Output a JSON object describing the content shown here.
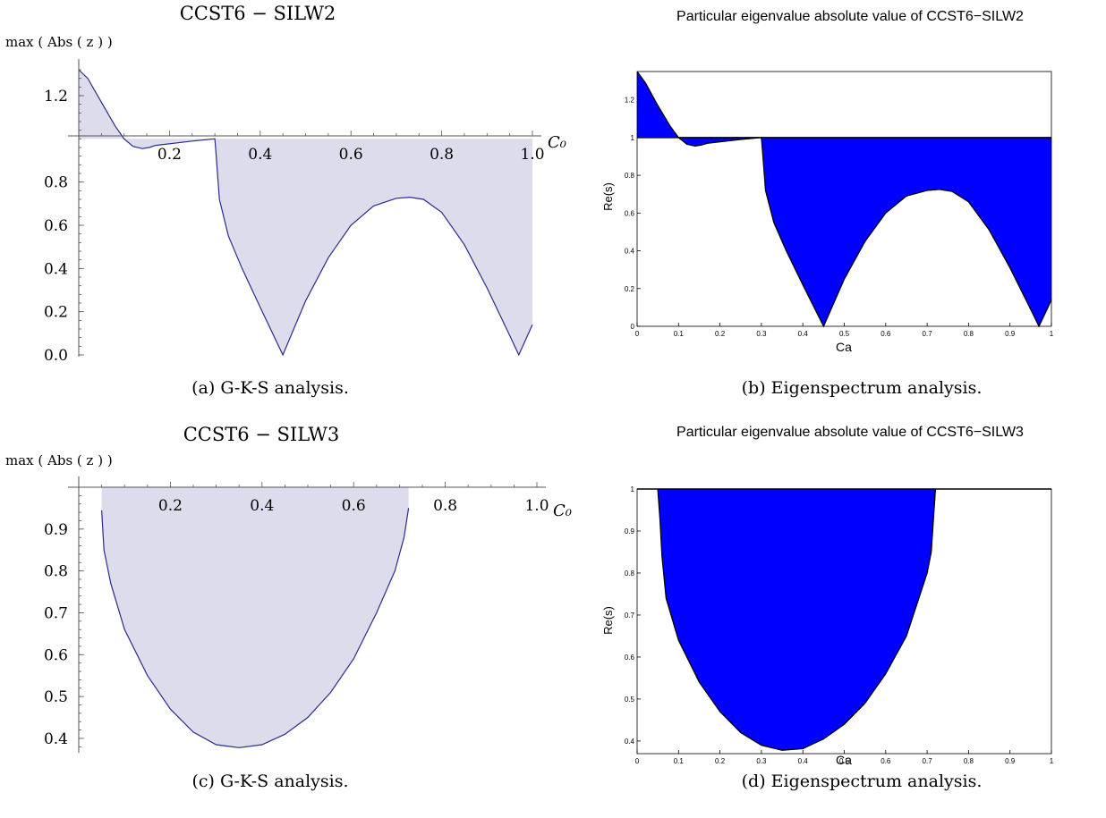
{
  "chart_data": [
    {
      "id": "a",
      "type": "area",
      "title": "CCST6 − SILW2",
      "ylabel": "max ( Abs ( z ) )",
      "xlabel": "C₀",
      "xlim": [
        0,
        1.0
      ],
      "ylim": [
        0,
        1.32
      ],
      "baseline": 1.0,
      "fill_color": "#dcdcec",
      "line_color": "#2b2b8c",
      "xticks": [
        0.2,
        0.4,
        0.6,
        0.8,
        1.0
      ],
      "xtick_labels": [
        "0.2",
        "0.4",
        "0.6",
        "0.8",
        "1.0"
      ],
      "yticks": [
        0.0,
        0.2,
        0.4,
        0.6,
        0.8,
        1.2
      ],
      "ytick_labels": [
        "0.0",
        "0.2",
        "0.4",
        "0.6",
        "0.8",
        "1.2"
      ],
      "x": [
        0.0,
        0.02,
        0.05,
        0.08,
        0.1,
        0.12,
        0.14,
        0.155,
        0.17,
        0.25,
        0.3,
        0.302,
        0.31,
        0.33,
        0.36,
        0.4,
        0.45,
        0.5,
        0.55,
        0.6,
        0.65,
        0.7,
        0.73,
        0.76,
        0.8,
        0.85,
        0.9,
        0.95,
        0.97,
        0.985,
        1.0
      ],
      "y": [
        1.32,
        1.28,
        1.17,
        1.06,
        1.0,
        0.965,
        0.955,
        0.96,
        0.97,
        0.99,
        1.0,
        0.95,
        0.72,
        0.55,
        0.4,
        0.22,
        0.0,
        0.25,
        0.45,
        0.6,
        0.69,
        0.725,
        0.73,
        0.72,
        0.66,
        0.51,
        0.31,
        0.09,
        0.0,
        0.07,
        0.14
      ],
      "caption": "(a) G-K-S analysis."
    },
    {
      "id": "b",
      "type": "area",
      "title": "Particular eigenvalue absolute value of CCST6−SILW2",
      "ylabel": "Re(s)",
      "xlabel": "Ca",
      "xlim": [
        0,
        1
      ],
      "ylim": [
        0,
        1.35
      ],
      "baseline": 1.0,
      "fill_color": "#0000ff",
      "line_color": "#000000",
      "xticks": [
        0,
        0.1,
        0.2,
        0.3,
        0.4,
        0.5,
        0.6,
        0.7,
        0.8,
        0.9,
        1
      ],
      "xtick_labels": [
        "0",
        "0.1",
        "0.2",
        "0.3",
        "0.4",
        "0.5",
        "0.6",
        "0.7",
        "0.8",
        "0.9",
        "1"
      ],
      "yticks": [
        0,
        0.2,
        0.4,
        0.6,
        0.8,
        1,
        1.2
      ],
      "ytick_labels": [
        "0",
        "0.2",
        "0.4",
        "0.6",
        "0.8",
        "1",
        "1.2"
      ],
      "x": [
        0.0,
        0.02,
        0.05,
        0.08,
        0.1,
        0.12,
        0.14,
        0.155,
        0.17,
        0.25,
        0.3,
        0.302,
        0.31,
        0.33,
        0.36,
        0.4,
        0.45,
        0.5,
        0.55,
        0.6,
        0.65,
        0.7,
        0.73,
        0.76,
        0.8,
        0.85,
        0.9,
        0.95,
        0.97,
        0.985,
        1.0
      ],
      "y": [
        1.35,
        1.29,
        1.17,
        1.06,
        1.0,
        0.965,
        0.955,
        0.96,
        0.97,
        0.99,
        1.0,
        0.95,
        0.72,
        0.55,
        0.4,
        0.22,
        0.0,
        0.25,
        0.45,
        0.6,
        0.69,
        0.72,
        0.725,
        0.715,
        0.66,
        0.51,
        0.31,
        0.09,
        0.0,
        0.07,
        0.14
      ],
      "caption": "(b) Eigenspectrum analysis."
    },
    {
      "id": "c",
      "type": "area",
      "title": "CCST6 − SILW3",
      "ylabel": "max ( Abs ( z ) )",
      "xlabel": "C₀",
      "xlim": [
        0,
        1.0
      ],
      "ylim": [
        0.37,
        1.0
      ],
      "baseline": 1.0,
      "fill_color": "#dcdcec",
      "line_color": "#2b2b8c",
      "xticks": [
        0.2,
        0.4,
        0.6,
        0.8,
        1.0
      ],
      "xtick_labels": [
        "0.2",
        "0.4",
        "0.6",
        "0.8",
        "1.0"
      ],
      "yticks": [
        0.4,
        0.5,
        0.6,
        0.7,
        0.8,
        0.9
      ],
      "ytick_labels": [
        "0.4",
        "0.5",
        "0.6",
        "0.7",
        "0.8",
        "0.9"
      ],
      "x": [
        0.05,
        0.055,
        0.07,
        0.1,
        0.15,
        0.2,
        0.25,
        0.3,
        0.35,
        0.4,
        0.45,
        0.5,
        0.55,
        0.6,
        0.65,
        0.69,
        0.71,
        0.72
      ],
      "y": [
        0.945,
        0.85,
        0.77,
        0.66,
        0.55,
        0.47,
        0.415,
        0.385,
        0.378,
        0.385,
        0.41,
        0.45,
        0.51,
        0.59,
        0.7,
        0.8,
        0.88,
        0.95
      ],
      "caption": "(c) G-K-S analysis."
    },
    {
      "id": "d",
      "type": "area",
      "title": "Particular eigenvalue absolute value of CCST6−SILW3",
      "ylabel": "Re(s)",
      "xlabel": "Ca",
      "xlim": [
        0,
        1
      ],
      "ylim": [
        0.37,
        1.0
      ],
      "baseline": 1.0,
      "fill_color": "#0000ff",
      "line_color": "#000000",
      "xticks": [
        0,
        0.1,
        0.2,
        0.3,
        0.4,
        0.5,
        0.6,
        0.7,
        0.8,
        0.9,
        1
      ],
      "xtick_labels": [
        "0",
        "0.1",
        "0.2",
        "0.3",
        "0.4",
        "0.5",
        "0.6",
        "0.7",
        "0.8",
        "0.9",
        "1"
      ],
      "yticks": [
        0.4,
        0.5,
        0.6,
        0.7,
        0.8,
        0.9,
        1
      ],
      "ytick_labels": [
        "0.4",
        "0.5",
        "0.6",
        "0.7",
        "0.8",
        "0.9",
        "1"
      ],
      "x": [
        0.05,
        0.055,
        0.06,
        0.07,
        0.1,
        0.15,
        0.2,
        0.25,
        0.3,
        0.35,
        0.4,
        0.45,
        0.5,
        0.55,
        0.6,
        0.65,
        0.7,
        0.71,
        0.72
      ],
      "y": [
        1.0,
        0.93,
        0.84,
        0.74,
        0.64,
        0.54,
        0.47,
        0.42,
        0.39,
        0.378,
        0.382,
        0.405,
        0.44,
        0.49,
        0.56,
        0.65,
        0.8,
        0.85,
        1.0
      ],
      "caption": "(d) Eigenspectrum analysis."
    }
  ]
}
